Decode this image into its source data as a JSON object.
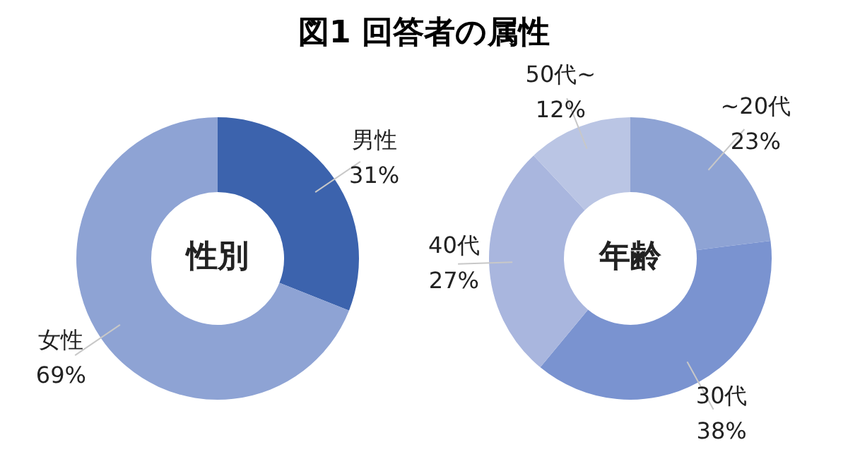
{
  "chart_data": [
    {
      "type": "donut",
      "title": "図1 回答者の属性",
      "annotations": [
        "性別"
      ],
      "categories": [
        "男性",
        "女性"
      ],
      "values": [
        31,
        69
      ],
      "colors": [
        "#3c63ad",
        "#8ea3d4"
      ],
      "value_labels": [
        "31%",
        "69%"
      ],
      "legend": false
    },
    {
      "type": "donut",
      "annotations": [
        "年齢"
      ],
      "categories": [
        "~20代",
        "30代",
        "40代",
        "50代~"
      ],
      "values": [
        23,
        38,
        27,
        12
      ],
      "colors": [
        "#8ea3d4",
        "#7a93d0",
        "#a9b6de",
        "#bac5e4"
      ],
      "value_labels": [
        "23%",
        "38%",
        "27%",
        "12%"
      ],
      "legend": false
    }
  ]
}
